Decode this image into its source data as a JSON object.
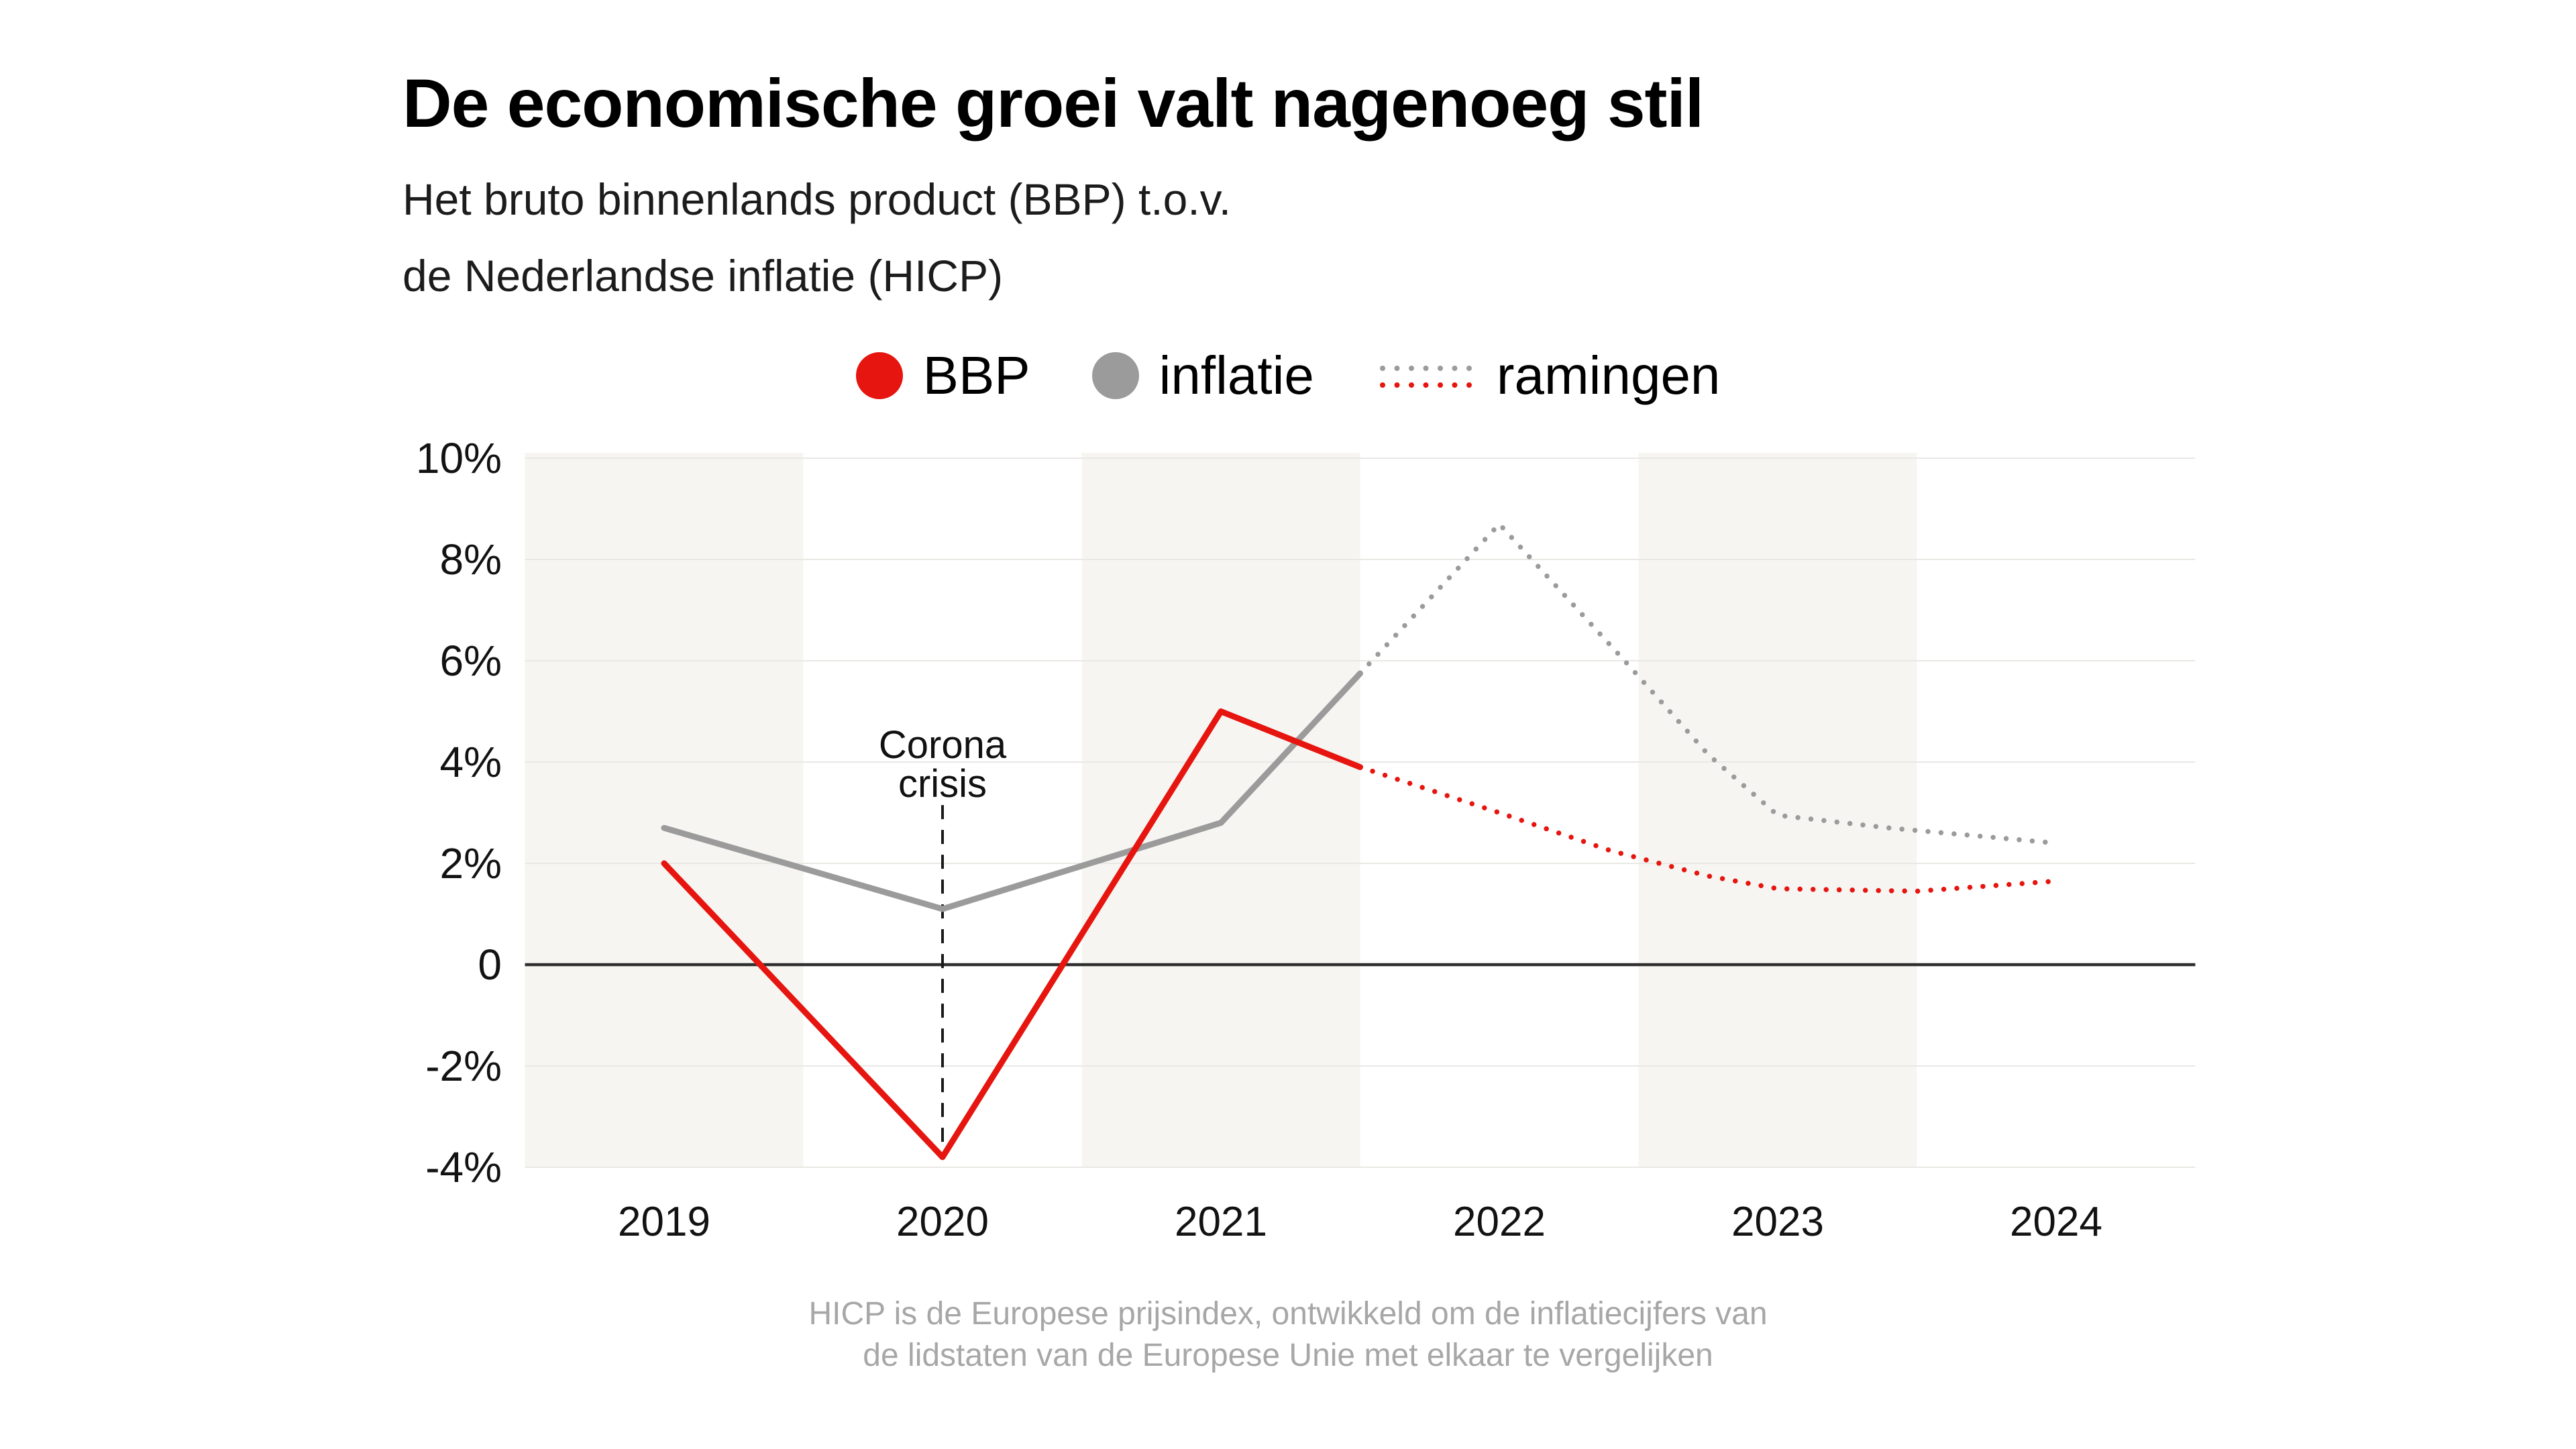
{
  "header": {
    "title": "De economische groei valt nagenoeg stil",
    "subtitle_line1": "Het bruto binnenlands product (BBP) t.o.v.",
    "subtitle_line2": "de Nederlandse inflatie (HICP)"
  },
  "legend": {
    "items": [
      {
        "label": "BBP",
        "color": "#e6150f"
      },
      {
        "label": "inflatie",
        "color": "#9b9b9b"
      },
      {
        "label": "ramingen",
        "colors": [
          "#9b9b9b",
          "#e6150f"
        ]
      }
    ]
  },
  "chart_data": {
    "type": "line",
    "title": "De economische groei valt nagenoeg stil",
    "xlabel": "",
    "ylabel": "",
    "unit": "%",
    "ylim": [
      -4,
      10
    ],
    "grid": "horizontal",
    "x_ticks": [
      "2019",
      "2020",
      "2021",
      "2022",
      "2023",
      "2024"
    ],
    "y_tick_labels": [
      "10%",
      "8%",
      "6%",
      "4%",
      "2%",
      "0",
      "-2%",
      "-4%"
    ],
    "y_tick_values": [
      10,
      8,
      6,
      4,
      2,
      0,
      -2,
      -4
    ],
    "series": [
      {
        "name": "inflatie",
        "color": "#9b9b9b",
        "style": "solid",
        "points": [
          [
            2019,
            2.7
          ],
          [
            2020,
            1.1
          ],
          [
            2021,
            2.8
          ],
          [
            2021.5,
            5.75
          ]
        ]
      },
      {
        "name": "inflatie-raming",
        "color": "#9b9b9b",
        "style": "dotted",
        "points": [
          [
            2021.5,
            5.75
          ],
          [
            2022,
            8.7
          ],
          [
            2022.45,
            6.0
          ],
          [
            2022.75,
            4.15
          ],
          [
            2023,
            2.95
          ],
          [
            2023.4,
            2.7
          ],
          [
            2024,
            2.4
          ]
        ]
      },
      {
        "name": "BBP",
        "color": "#e6150f",
        "style": "solid",
        "points": [
          [
            2019,
            2.0
          ],
          [
            2020,
            -3.8
          ],
          [
            2021,
            5.0
          ],
          [
            2021.5,
            3.9
          ]
        ]
      },
      {
        "name": "BBP-raming",
        "color": "#e6150f",
        "style": "dotted",
        "points": [
          [
            2021.5,
            3.9
          ],
          [
            2022,
            3.0
          ],
          [
            2022.4,
            2.25
          ],
          [
            2022.75,
            1.75
          ],
          [
            2023,
            1.5
          ],
          [
            2023.5,
            1.45
          ],
          [
            2024,
            1.65
          ]
        ]
      }
    ],
    "annotation": {
      "label_line1": "Corona",
      "label_line2": "crisis",
      "x": 2020,
      "line_top_value": 3.15,
      "line_bottom_value": -3.8
    },
    "plot": {
      "band_colors": [
        "#f6f5f2",
        "#ffffff"
      ],
      "gridline_color": "#e9e8e5",
      "zero_line_color": "#2e2e2e",
      "annotation_line_color": "#1a1a1a"
    }
  },
  "footer": {
    "line1": "HICP is de Europese prijsindex, ontwikkeld om de inflatiecijfers van",
    "line2": "de lidstaten van de Europese Unie met elkaar te vergelijken"
  }
}
